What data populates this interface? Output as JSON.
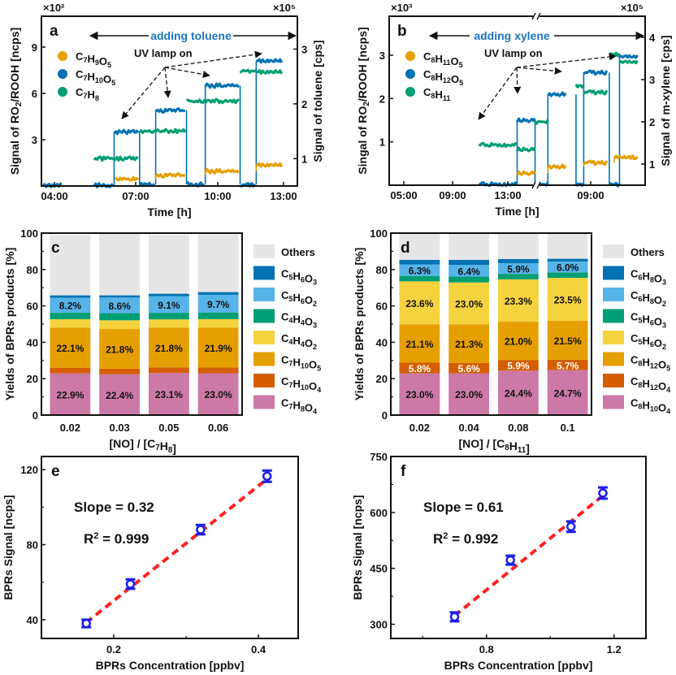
{
  "chart_data": [
    {
      "id": "a",
      "type": "line",
      "panel_label": "a",
      "title": "",
      "xlabel": "Time [h]",
      "ylabel": "Signal of RO2/ROOH [ncps]",
      "ylabel_right": "Signal of toluene [cps]",
      "y_multiplier": "×10²",
      "y_multiplier_right": "×10⁵",
      "xlim": [
        4,
        13.5
      ],
      "ylim": [
        0,
        11
      ],
      "ylim_right": [
        0.5,
        3.6
      ],
      "x_ticks": [
        4,
        7,
        10,
        13
      ],
      "x_tick_labels": [
        "04:00",
        "07:00",
        "10:00",
        "13:00"
      ],
      "y_ticks": [
        3,
        6,
        9
      ],
      "y_ticks_right": [
        1,
        2,
        3
      ],
      "annotation_top": "adding toluene",
      "annotation_lamp": "UV lamp on",
      "legend": [
        {
          "name": "C7H9O5",
          "sub": [
            "C",
            "7",
            "H",
            "9",
            "O",
            "5"
          ],
          "color": "#E69F00"
        },
        {
          "name": "C7H10O5",
          "sub": [
            "C",
            "7",
            "H",
            "10",
            "O",
            "5"
          ],
          "color": "#0072B2"
        },
        {
          "name": "C7H8",
          "sub": [
            "C",
            "7",
            "H",
            "8"
          ],
          "color": "#009E73"
        }
      ],
      "series": [
        {
          "name": "C7H10O5",
          "axis": "left",
          "segments": [
            {
              "x": [
                4.0,
                4.7
              ],
              "y": 0.05
            },
            {
              "x": [
                5.9,
                6.6
              ],
              "y": 0.05
            },
            {
              "x": [
                6.65,
                7.55
              ],
              "y": 3.5
            },
            {
              "x": [
                7.6,
                8.15
              ],
              "y": 0.1
            },
            {
              "x": [
                8.2,
                9.3
              ],
              "y": 4.9
            },
            {
              "x": [
                9.35,
                10.0
              ],
              "y": 0.1
            },
            {
              "x": [
                10.05,
                11.3
              ],
              "y": 6.5
            },
            {
              "x": [
                11.35,
                11.9
              ],
              "y": 0.1
            },
            {
              "x": [
                11.95,
                12.9
              ],
              "y": 8.1
            }
          ]
        },
        {
          "name": "C7H9O5",
          "axis": "left",
          "segments": [
            {
              "x": [
                6.7,
                7.55
              ],
              "y": 0.45
            },
            {
              "x": [
                8.2,
                9.3
              ],
              "y": 0.7
            },
            {
              "x": [
                10.05,
                11.3
              ],
              "y": 0.95
            },
            {
              "x": [
                11.95,
                12.9
              ],
              "y": 1.35
            }
          ]
        },
        {
          "name": "C7H8",
          "axis": "right",
          "segments": [
            {
              "x": [
                5.9,
                7.55
              ],
              "y": 1.0
            },
            {
              "x": [
                7.6,
                9.3
              ],
              "y": 1.5
            },
            {
              "x": [
                9.35,
                11.3
              ],
              "y": 2.05
            },
            {
              "x": [
                11.35,
                11.95
              ],
              "y": 2.6
            },
            {
              "x": [
                11.95,
                12.9
              ],
              "y": 2.58
            }
          ]
        }
      ]
    },
    {
      "id": "b",
      "type": "line",
      "panel_label": "b",
      "title": "",
      "xlabel": "Time [h]",
      "ylabel": "Singal of RO2/ROOH [ncps]",
      "ylabel_right": "Signal of m-xylene [cps]",
      "y_multiplier": "×10³",
      "y_multiplier_right": "×10⁵",
      "axis_break": true,
      "x_tick_labels": [
        "05:00",
        "09:00",
        "13:00",
        "09:00"
      ],
      "ylim": [
        0,
        3.9
      ],
      "ylim_right": [
        0.5,
        4.5
      ],
      "y_ticks": [
        1,
        2,
        3
      ],
      "y_ticks_right": [
        1,
        2,
        3,
        4
      ],
      "annotation_top": "adding xylene",
      "annotation_lamp": "UV lamp on",
      "legend": [
        {
          "name": "C8H11O5",
          "sub": [
            "C",
            "8",
            "H",
            "11",
            "O",
            "5"
          ],
          "color": "#E69F00"
        },
        {
          "name": "C8H12O5",
          "sub": [
            "C",
            "8",
            "H",
            "12",
            "O",
            "5"
          ],
          "color": "#0072B2"
        },
        {
          "name": "C8H11",
          "sub": [
            "C",
            "8",
            "H",
            "11"
          ],
          "color": "#009E73"
        }
      ],
      "series": [
        {
          "name": "C8H12O5",
          "axis": "left",
          "segments": [
            {
              "x": [
                0.35,
                0.5
              ],
              "y": 0.02
            },
            {
              "x": [
                0.5,
                0.57
              ],
              "y": 1.5
            },
            {
              "x": [
                0.57,
                0.62
              ],
              "y": 0.02
            },
            {
              "x": [
                0.62,
                0.69
              ],
              "y": 2.1
            },
            {
              "x": [
                0.73,
                0.76
              ],
              "y": 0.02
            },
            {
              "x": [
                0.76,
                0.85
              ],
              "y": 2.6
            },
            {
              "x": [
                0.86,
                0.9
              ],
              "y": 0.02
            },
            {
              "x": [
                0.9,
                0.97
              ],
              "y": 2.97
            }
          ]
        },
        {
          "name": "C8H11O5",
          "axis": "left",
          "segments": [
            {
              "x": [
                0.5,
                0.57
              ],
              "y": 0.28
            },
            {
              "x": [
                0.62,
                0.69
              ],
              "y": 0.43
            },
            {
              "x": [
                0.76,
                0.85
              ],
              "y": 0.52
            },
            {
              "x": [
                0.88,
                0.97
              ],
              "y": 0.64
            }
          ]
        },
        {
          "name": "C8H11",
          "axis": "right",
          "segments": [
            {
              "x": [
                0.35,
                0.5
              ],
              "y": 1.45
            },
            {
              "x": [
                0.5,
                0.57
              ],
              "y": 1.35
            },
            {
              "x": [
                0.57,
                0.62
              ],
              "y": 2.0
            },
            {
              "x": [
                0.73,
                0.76
              ],
              "y": 2.85
            },
            {
              "x": [
                0.76,
                0.85
              ],
              "y": 2.7
            },
            {
              "x": [
                0.86,
                0.9
              ],
              "y": 3.6
            },
            {
              "x": [
                0.9,
                0.97
              ],
              "y": 3.42
            }
          ]
        }
      ]
    },
    {
      "id": "c",
      "type": "bar",
      "stacked": true,
      "panel_label": "c",
      "xlabel": "[NO] / [C7H8]",
      "xlabel_parts": [
        "[NO] / [C",
        "7",
        "H",
        "8",
        "]"
      ],
      "ylabel": "Yields of BPRs products [%]",
      "ylim": [
        0,
        100
      ],
      "y_ticks": [
        0,
        20,
        40,
        60,
        80,
        100
      ],
      "categories": [
        "0.02",
        "0.03",
        "0.05",
        "0.06"
      ],
      "series": [
        {
          "name": "C7H8O4",
          "sub": [
            "C",
            "7",
            "H",
            "8",
            "O",
            "4"
          ],
          "color": "#CC79A7",
          "values": [
            22.9,
            22.4,
            23.1,
            23.0
          ],
          "labels": [
            "22.9%",
            "22.4%",
            "23.1%",
            "23.0%"
          ],
          "label_color": "#111111"
        },
        {
          "name": "C7H10O4",
          "sub": [
            "C",
            "7",
            "H",
            "10",
            "O",
            "4"
          ],
          "color": "#D55E00",
          "values": [
            3.1,
            3.1,
            3.1,
            3.1
          ],
          "labels": []
        },
        {
          "name": "C7H10O5",
          "sub": [
            "C",
            "7",
            "H",
            "10",
            "O",
            "5"
          ],
          "color": "#E69F00",
          "values": [
            22.1,
            21.8,
            21.8,
            21.9
          ],
          "labels": [
            "22.1%",
            "21.8%",
            "21.8%",
            "21.9%"
          ],
          "label_color": "#111111"
        },
        {
          "name": "C4H4O2",
          "sub": [
            "C",
            "4",
            "H",
            "4",
            "O",
            "2"
          ],
          "color": "#F5D33E",
          "values": [
            4.6,
            4.8,
            4.6,
            4.7
          ],
          "labels": []
        },
        {
          "name": "C4H4O3",
          "sub": [
            "C",
            "4",
            "H",
            "4",
            "O",
            "3"
          ],
          "color": "#009E73",
          "values": [
            3.6,
            3.9,
            3.6,
            3.7
          ],
          "labels": []
        },
        {
          "name": "C5H6O2",
          "sub": [
            "C",
            "5",
            "H",
            "6",
            "O",
            "2"
          ],
          "color": "#56B4E9",
          "values": [
            8.2,
            8.6,
            9.1,
            9.7
          ],
          "labels": [
            "8.2%",
            "8.6%",
            "9.1%",
            "9.7%"
          ],
          "label_color": "#111111"
        },
        {
          "name": "C5H6O3",
          "sub": [
            "C",
            "5",
            "H",
            "6",
            "O",
            "3"
          ],
          "color": "#0072B2",
          "values": [
            1.3,
            1.2,
            1.4,
            1.5
          ],
          "labels": []
        },
        {
          "name": "Others",
          "sub": [
            "Others"
          ],
          "color": "#E6E6E6",
          "values": [
            33.2,
            34.2,
            32.4,
            31.7
          ],
          "labels": []
        }
      ]
    },
    {
      "id": "d",
      "type": "bar",
      "stacked": true,
      "panel_label": "d",
      "xlabel": "[NO] / [C8H11]",
      "xlabel_parts": [
        "[NO] / [C",
        "8",
        "H",
        "11",
        "]"
      ],
      "ylabel": "Yields of BPRs products [%]",
      "ylim": [
        0,
        100
      ],
      "y_ticks": [
        0,
        20,
        40,
        60,
        80,
        100
      ],
      "categories": [
        "0.02",
        "0.04",
        "0.08",
        "0.1"
      ],
      "series": [
        {
          "name": "C8H10O4",
          "sub": [
            "C",
            "8",
            "H",
            "10",
            "O",
            "4"
          ],
          "color": "#CC79A7",
          "values": [
            23.0,
            23.0,
            24.4,
            24.7
          ],
          "labels": [
            "23.0%",
            "23.0%",
            "24.4%",
            "24.7%"
          ],
          "label_color": "#111111"
        },
        {
          "name": "C8H12O4",
          "sub": [
            "C",
            "8",
            "H",
            "12",
            "O",
            "4"
          ],
          "color": "#D55E00",
          "values": [
            5.8,
            5.6,
            5.9,
            5.7
          ],
          "labels": [
            "5.8%",
            "5.6%",
            "5.9%",
            "5.7%"
          ],
          "label_color": "#ffffff"
        },
        {
          "name": "C8H12O5",
          "sub": [
            "C",
            "8",
            "H",
            "12",
            "O",
            "5"
          ],
          "color": "#E69F00",
          "values": [
            21.1,
            21.3,
            21.0,
            21.5
          ],
          "labels": [
            "21.1%",
            "21.3%",
            "21.0%",
            "21.5%"
          ],
          "label_color": "#111111"
        },
        {
          "name": "C5H6O2",
          "sub": [
            "C",
            "5",
            "H",
            "6",
            "O",
            "2"
          ],
          "color": "#F5D33E",
          "values": [
            23.6,
            23.0,
            23.3,
            23.5
          ],
          "labels": [
            "23.6%",
            "23.0%",
            "23.3%",
            "23.5%"
          ],
          "label_color": "#111111"
        },
        {
          "name": "C5H6O3",
          "sub": [
            "C",
            "5",
            "H",
            "6",
            "O",
            "3"
          ],
          "color": "#009E73",
          "values": [
            3.0,
            3.2,
            3.0,
            3.0
          ],
          "labels": []
        },
        {
          "name": "C6H8O2",
          "sub": [
            "C",
            "6",
            "H",
            "8",
            "O",
            "2"
          ],
          "color": "#56B4E9",
          "values": [
            6.3,
            6.4,
            5.9,
            6.0
          ],
          "labels": [
            "6.3%",
            "6.4%",
            "5.9%",
            "6.0%"
          ],
          "label_color": "#111111"
        },
        {
          "name": "C6H8O3",
          "sub": [
            "C",
            "6",
            "H",
            "8",
            "O",
            "3"
          ],
          "color": "#0072B2",
          "values": [
            2.5,
            2.8,
            2.3,
            1.5
          ],
          "labels": []
        },
        {
          "name": "Others",
          "sub": [
            "Others"
          ],
          "color": "#E6E6E6",
          "values": [
            14.7,
            14.7,
            14.2,
            14.1
          ],
          "labels": []
        }
      ]
    },
    {
      "id": "e",
      "type": "scatter",
      "panel_label": "e",
      "xlabel": "BPRs Concentration [ppbv]",
      "ylabel": "BPRs Signal [ncps]",
      "xlim": [
        0.1,
        0.455
      ],
      "ylim": [
        30,
        127
      ],
      "x_ticks": [
        0.2,
        0.4
      ],
      "x_minor_ticks": [
        0.3
      ],
      "y_ticks": [
        40,
        80,
        120
      ],
      "y_minor_ticks": [
        60,
        100
      ],
      "points": [
        {
          "x": 0.162,
          "y": 38,
          "err": 2
        },
        {
          "x": 0.223,
          "y": 59,
          "err": 2.5
        },
        {
          "x": 0.32,
          "y": 88,
          "err": 2.5
        },
        {
          "x": 0.412,
          "y": 116.5,
          "err": 3
        }
      ],
      "fit": {
        "x": [
          0.162,
          0.412
        ],
        "y": [
          38.5,
          115
        ],
        "color": "#FF2020"
      },
      "marker_color": "#1E1EE6",
      "annotations": {
        "slope": "Slope = 0.32",
        "r2_prefix": "R",
        "r2_sup": "2",
        "r2_value": "= 0.999"
      }
    },
    {
      "id": "f",
      "type": "scatter",
      "panel_label": "f",
      "xlabel": "BPRs Concentration [ppbv]",
      "ylabel": "BPRs Signal [ncps]",
      "xlim": [
        0.5,
        1.3
      ],
      "ylim": [
        262,
        750
      ],
      "x_ticks": [
        0.8,
        1.2
      ],
      "x_minor_ticks": [
        0.6,
        1.0
      ],
      "y_ticks": [
        300,
        450,
        600,
        750
      ],
      "y_minor_ticks": [
        375,
        525,
        675
      ],
      "points": [
        {
          "x": 0.7,
          "y": 320,
          "err": 12
        },
        {
          "x": 0.875,
          "y": 472,
          "err": 12
        },
        {
          "x": 1.065,
          "y": 562,
          "err": 14
        },
        {
          "x": 1.165,
          "y": 652,
          "err": 15
        }
      ],
      "fit": {
        "x": [
          0.7,
          1.165
        ],
        "y": [
          323,
          645
        ],
        "color": "#FF2020"
      },
      "marker_color": "#1E1EE6",
      "annotations": {
        "slope": "Slope = 0.61",
        "r2_prefix": "R",
        "r2_sup": "2",
        "r2_value": "= 0.992"
      }
    }
  ]
}
